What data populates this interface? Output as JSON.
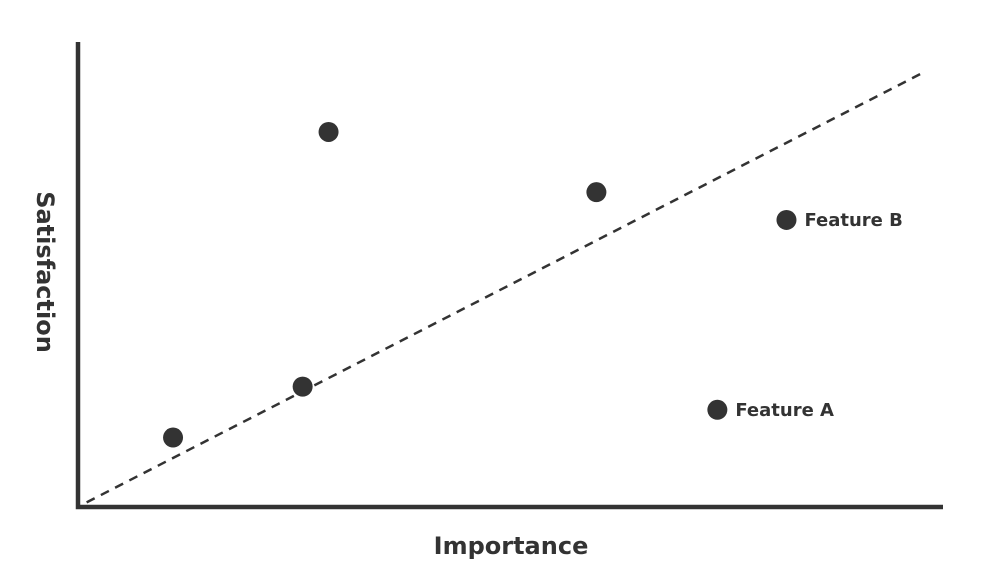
{
  "chart_data": {
    "type": "scatter",
    "x_label": "Importance",
    "y_label": "Satisfaction",
    "xlim": [
      0,
      100
    ],
    "ylim": [
      0,
      100
    ],
    "color": "#333333",
    "x": [
      11,
      26,
      29,
      60,
      82,
      74
    ],
    "values": [
      15,
      26,
      81,
      68,
      62,
      21
    ],
    "point_labels": [
      null,
      null,
      null,
      null,
      "Feature B",
      "Feature A"
    ],
    "trend_line": {
      "x": [
        1,
        98
      ],
      "y": [
        1,
        94
      ]
    }
  }
}
